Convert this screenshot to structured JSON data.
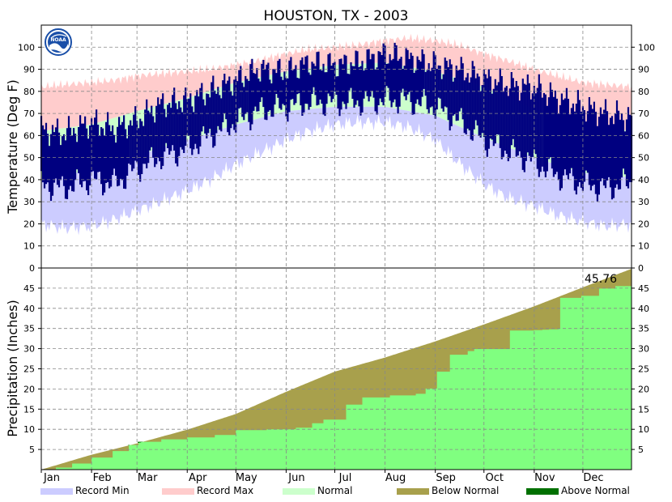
{
  "chart_data": [
    {
      "type": "area",
      "title": "HOUSTON, TX - 2003",
      "ylabel": "Temperature (Deg F)",
      "ylim": [
        0,
        110
      ],
      "yticks": [
        0,
        10,
        20,
        30,
        40,
        50,
        60,
        70,
        80,
        90,
        100
      ],
      "grid": true,
      "record_max": {
        "x": [
          1,
          15,
          32,
          46,
          60,
          74,
          91,
          105,
          121,
          135,
          152,
          166,
          182,
          196,
          213,
          227,
          244,
          258,
          274,
          288,
          305,
          319,
          335,
          349,
          365
        ],
        "y": [
          82,
          83,
          84,
          85,
          87,
          88,
          89,
          90,
          92,
          94,
          97,
          99,
          100,
          101,
          103,
          104,
          103,
          101,
          97,
          94,
          90,
          87,
          84,
          83,
          82
        ]
      },
      "normal_high": {
        "x": [
          1,
          32,
          60,
          91,
          121,
          152,
          182,
          213,
          244,
          274,
          305,
          335,
          365
        ],
        "y": [
          62,
          65,
          71,
          77,
          84,
          89,
          92,
          93,
          89,
          82,
          72,
          65,
          62
        ]
      },
      "normal_low": {
        "x": [
          1,
          32,
          60,
          91,
          121,
          152,
          182,
          213,
          244,
          274,
          305,
          335,
          365
        ],
        "y": [
          41,
          44,
          51,
          58,
          65,
          71,
          73,
          73,
          69,
          59,
          50,
          43,
          41
        ]
      },
      "record_min": {
        "x": [
          1,
          15,
          32,
          46,
          60,
          74,
          91,
          105,
          121,
          135,
          152,
          166,
          182,
          196,
          213,
          227,
          244,
          258,
          274,
          288,
          305,
          319,
          335,
          349,
          365
        ],
        "y": [
          20,
          18,
          19,
          22,
          26,
          30,
          35,
          40,
          47,
          52,
          58,
          62,
          65,
          66,
          66,
          64,
          58,
          48,
          38,
          32,
          28,
          24,
          21,
          19,
          20
        ]
      },
      "actual_high": {
        "x": [
          1,
          15,
          32,
          46,
          60,
          74,
          91,
          105,
          121,
          135,
          152,
          166,
          182,
          196,
          213,
          227,
          244,
          258,
          274,
          288,
          305,
          319,
          335,
          349,
          365
        ],
        "y": [
          63,
          61,
          66,
          63,
          67,
          74,
          76,
          80,
          85,
          90,
          89,
          93,
          92,
          93,
          97,
          95,
          92,
          90,
          86,
          83,
          82,
          77,
          73,
          70,
          68
        ]
      },
      "actual_low": {
        "x": [
          1,
          15,
          32,
          46,
          60,
          74,
          91,
          105,
          121,
          135,
          152,
          166,
          182,
          196,
          213,
          227,
          244,
          258,
          274,
          288,
          305,
          319,
          335,
          349,
          365
        ],
        "y": [
          38,
          36,
          40,
          38,
          45,
          50,
          54,
          60,
          66,
          71,
          73,
          75,
          75,
          75,
          76,
          76,
          73,
          67,
          58,
          53,
          48,
          42,
          38,
          36,
          39
        ]
      }
    },
    {
      "type": "area",
      "ylabel": "Precipitation (Inches)",
      "ylim": [
        0,
        50
      ],
      "yticks": [
        5,
        10,
        15,
        20,
        25,
        30,
        35,
        40,
        45
      ],
      "grid": true,
      "annotation": "45.76",
      "normal_cumulative": {
        "x": [
          1,
          32,
          60,
          91,
          121,
          152,
          182,
          213,
          244,
          274,
          305,
          335,
          365
        ],
        "y": [
          0,
          3.7,
          6.5,
          9.9,
          13.8,
          19.3,
          24.3,
          27.8,
          31.8,
          36.0,
          40.5,
          45.2,
          49.8
        ]
      },
      "actual_cumulative": {
        "x": [
          1,
          10,
          20,
          32,
          45,
          55,
          61,
          75,
          91,
          108,
          121,
          140,
          158,
          168,
          175,
          189,
          199,
          216,
          232,
          238,
          245,
          253,
          264,
          268,
          290,
          305,
          310,
          314,
          320,
          321,
          334,
          345,
          355,
          365
        ],
        "y": [
          0,
          0.5,
          1.5,
          3.0,
          4.6,
          6.1,
          6.9,
          7.5,
          8.0,
          8.6,
          9.8,
          10.0,
          10.4,
          11.5,
          12.4,
          16.1,
          17.9,
          18.4,
          18.8,
          20.1,
          24.3,
          28.5,
          29.4,
          29.9,
          34.5,
          34.6,
          34.7,
          34.8,
          34.9,
          42.6,
          43.1,
          44.9,
          45.5,
          45.76
        ]
      }
    }
  ],
  "x_axis": {
    "months": [
      "Jan",
      "Feb",
      "Mar",
      "Apr",
      "May",
      "Jun",
      "Jul",
      "Aug",
      "Sep",
      "Oct",
      "Nov",
      "Dec"
    ],
    "month_start_days": [
      1,
      32,
      60,
      91,
      121,
      152,
      182,
      213,
      244,
      274,
      305,
      335
    ],
    "days_in_year": 365
  },
  "legend": [
    {
      "label": "Record Min",
      "color": "#ccccff"
    },
    {
      "label": "Record Max",
      "color": "#ffcccc"
    },
    {
      "label": "Normal",
      "color": "#ccffcc"
    },
    {
      "label": "Below Normal",
      "color": "#a8a04c"
    },
    {
      "label": "Above Normal",
      "color": "#007000"
    }
  ],
  "colors": {
    "record_min": "#ccccff",
    "record_max": "#ffcccc",
    "normal": "#ccffcc",
    "actual": "#000080",
    "observed_precip": "#80ff80",
    "below_normal": "#a8a04c",
    "above_normal": "#007000"
  },
  "logo": {
    "text": "NOAA",
    "color": "#1a4fa8"
  }
}
